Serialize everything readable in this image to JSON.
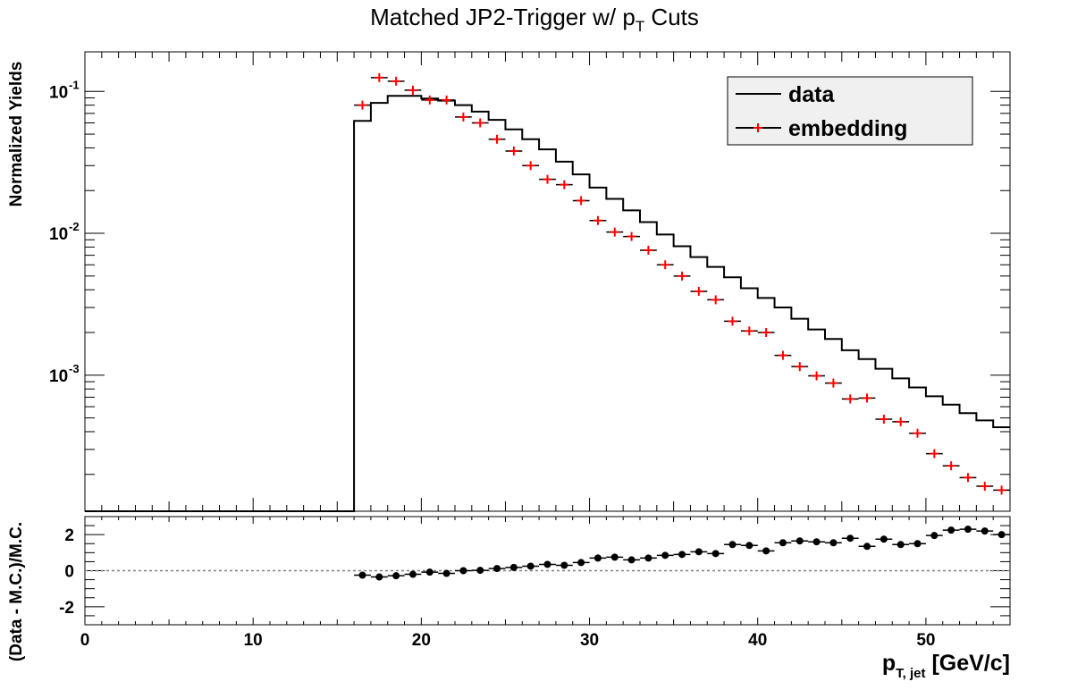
{
  "chart_data": [
    {
      "type": "line",
      "title_main": "Matched JP2-Trigger w/ p",
      "title_sub": "T",
      "title_tail": " Cuts",
      "ylabel": "Normalized Yields",
      "yscale": "log",
      "ylim": [
        0.00011,
        0.19
      ],
      "xlim": [
        0,
        55
      ],
      "y_tick_labels": [
        "10",
        "10",
        "10"
      ],
      "y_tick_exponents": [
        "-1",
        "-2",
        "-3"
      ],
      "y_tick_values": [
        0.1,
        0.01,
        0.001
      ],
      "legend": {
        "position": "top-right",
        "entries": [
          "data",
          "embedding"
        ]
      },
      "series": [
        {
          "name": "data",
          "style": "histogram",
          "color": "#000000",
          "bin_edges": [
            0,
            1,
            2,
            3,
            4,
            5,
            6,
            7,
            8,
            9,
            10,
            11,
            12,
            13,
            14,
            15,
            16,
            17,
            18,
            19,
            20,
            21,
            22,
            23,
            24,
            25,
            26,
            27,
            28,
            29,
            30,
            31,
            32,
            33,
            34,
            35,
            36,
            37,
            38,
            39,
            40,
            41,
            42,
            43,
            44,
            45,
            46,
            47,
            48,
            49,
            50,
            51,
            52,
            53,
            54,
            55
          ],
          "values": [
            0.00011,
            0.00011,
            0.00011,
            0.00011,
            0.00011,
            0.00011,
            0.00011,
            0.00011,
            0.00011,
            0.00011,
            0.00011,
            0.00011,
            0.00011,
            0.00011,
            0.00011,
            0.00011,
            0.062,
            0.083,
            0.093,
            0.093,
            0.089,
            0.086,
            0.08,
            0.072,
            0.063,
            0.054,
            0.046,
            0.039,
            0.032,
            0.026,
            0.021,
            0.0175,
            0.0145,
            0.012,
            0.0098,
            0.0081,
            0.0068,
            0.0058,
            0.0049,
            0.0041,
            0.0035,
            0.003,
            0.0025,
            0.0021,
            0.0018,
            0.0015,
            0.0013,
            0.00111,
            0.00095,
            0.00082,
            0.00071,
            0.00062,
            0.00054,
            0.00048,
            0.00043
          ]
        },
        {
          "name": "embedding",
          "style": "markers",
          "color": "#ff0000",
          "x": [
            16.5,
            17.5,
            18.5,
            19.5,
            20.5,
            21.5,
            22.5,
            23.5,
            24.5,
            25.5,
            26.5,
            27.5,
            28.5,
            29.5,
            30.5,
            31.5,
            32.5,
            33.5,
            34.5,
            35.5,
            36.5,
            37.5,
            38.5,
            39.5,
            40.5,
            41.5,
            42.5,
            43.5,
            44.5,
            45.5,
            46.5,
            47.5,
            48.5,
            49.5,
            50.5,
            51.5,
            52.5,
            53.5,
            54.5
          ],
          "y": [
            0.08,
            0.125,
            0.118,
            0.102,
            0.087,
            0.087,
            0.066,
            0.06,
            0.046,
            0.038,
            0.03,
            0.024,
            0.022,
            0.017,
            0.0123,
            0.0102,
            0.0095,
            0.0076,
            0.006,
            0.005,
            0.0039,
            0.0034,
            0.0024,
            0.00205,
            0.002,
            0.00138,
            0.00115,
            0.00099,
            0.00088,
            0.00068,
            0.00069,
            0.00049,
            0.00047,
            0.00039,
            0.00028,
            0.00023,
            0.00019,
            0.000165,
            0.000155
          ]
        }
      ]
    },
    {
      "type": "scatter",
      "ylabel": "(Data - M.C.)/M.C.",
      "xlabel_main": "p",
      "xlabel_sub": "T, jet",
      "xlabel_tail": " [GeV/c]",
      "xlim": [
        0,
        55
      ],
      "ylim": [
        -3,
        3
      ],
      "x_ticks": [
        0,
        10,
        20,
        30,
        40,
        50
      ],
      "y_ticks": [
        2,
        0,
        -2
      ],
      "reference_line": 0,
      "series": [
        {
          "name": "",
          "color": "#000000",
          "x": [
            16.5,
            17.5,
            18.5,
            19.5,
            20.5,
            21.5,
            22.5,
            23.5,
            24.5,
            25.5,
            26.5,
            27.5,
            28.5,
            29.5,
            30.5,
            31.5,
            32.5,
            33.5,
            34.5,
            35.5,
            36.5,
            37.5,
            38.5,
            39.5,
            40.5,
            41.5,
            42.5,
            43.5,
            44.5,
            45.5,
            46.5,
            47.5,
            48.5,
            49.5,
            50.5,
            51.5,
            52.5,
            53.5,
            54.5
          ],
          "y": [
            -0.25,
            -0.35,
            -0.28,
            -0.2,
            -0.08,
            -0.15,
            0.0,
            0.02,
            0.12,
            0.18,
            0.25,
            0.35,
            0.3,
            0.45,
            0.7,
            0.75,
            0.6,
            0.7,
            0.85,
            0.9,
            1.05,
            0.95,
            1.45,
            1.4,
            1.1,
            1.55,
            1.65,
            1.6,
            1.55,
            1.8,
            1.35,
            1.75,
            1.45,
            1.5,
            1.95,
            2.25,
            2.3,
            2.2,
            2.0
          ]
        }
      ]
    }
  ]
}
